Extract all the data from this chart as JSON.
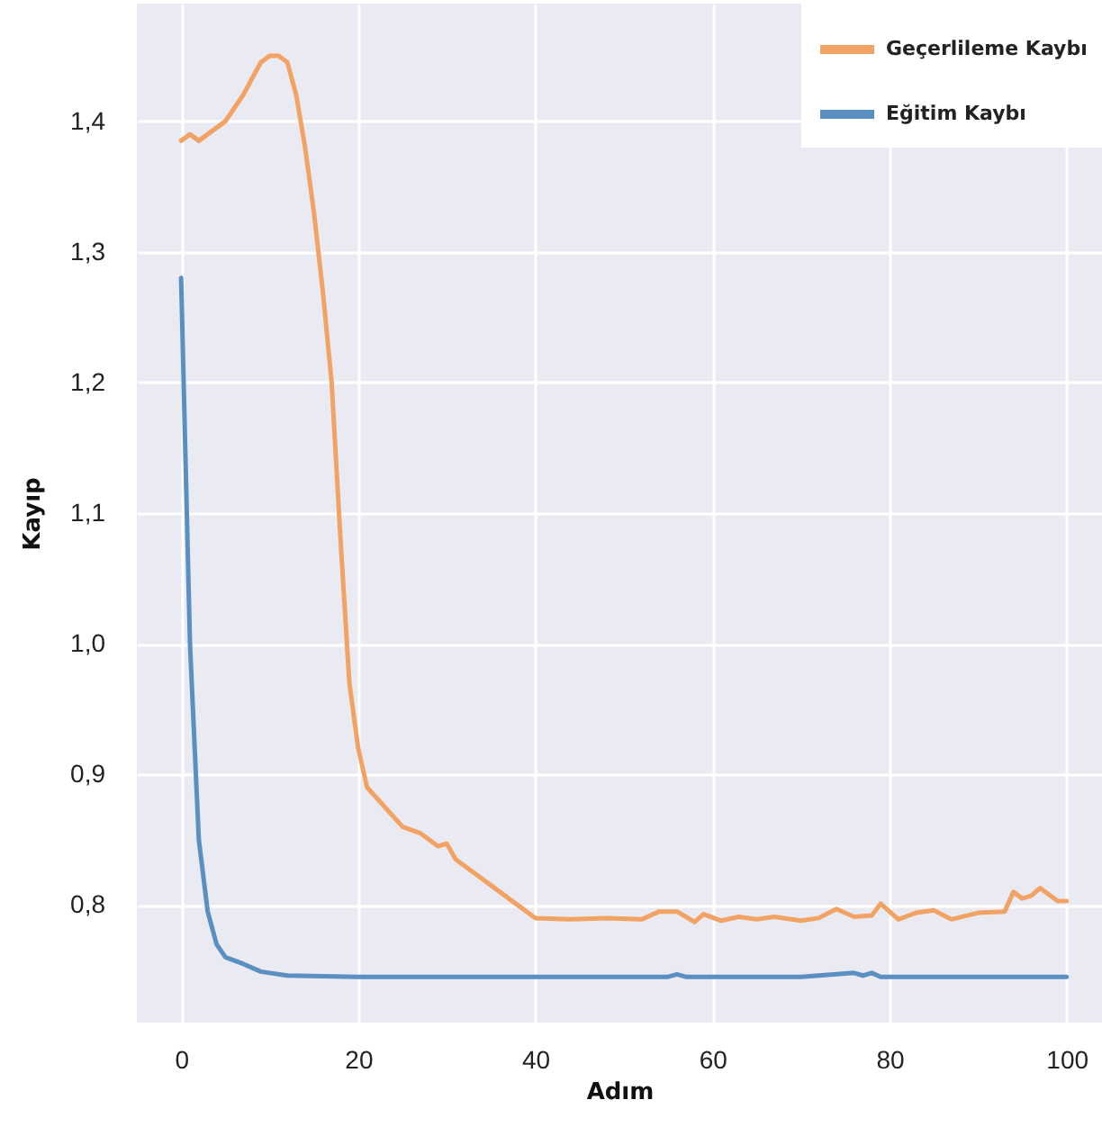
{
  "chart_data": {
    "type": "line",
    "xlabel": "Adım",
    "ylabel": "Kayıp",
    "xlim": [
      -5,
      104
    ],
    "ylim": [
      0.71,
      1.49
    ],
    "xticks": [
      0,
      20,
      40,
      60,
      80,
      100
    ],
    "yticks": [
      {
        "value": 0.8,
        "label": "0,8"
      },
      {
        "value": 0.9,
        "label": "0,9"
      },
      {
        "value": 1.0,
        "label": "1,0"
      },
      {
        "value": 1.1,
        "label": "1,1"
      },
      {
        "value": 1.2,
        "label": "1,2"
      },
      {
        "value": 1.3,
        "label": "1,3"
      },
      {
        "value": 1.4,
        "label": "1,4"
      }
    ],
    "grid": true,
    "legend": "top right",
    "line_style": "solid",
    "marker": "none",
    "series": [
      {
        "name": "Geçerlileme Kaybı",
        "color": "#f2a263",
        "x": [
          0,
          1,
          2,
          3,
          5,
          7,
          9,
          10,
          11,
          12,
          13,
          14,
          15,
          16,
          17,
          18,
          19,
          20,
          21,
          23,
          25,
          27,
          29,
          30,
          31,
          34,
          36,
          38,
          40,
          44,
          48,
          52,
          54,
          56,
          58,
          59,
          61,
          63,
          65,
          67,
          70,
          72,
          74,
          76,
          78,
          79,
          81,
          83,
          85,
          87,
          90,
          93,
          94,
          95,
          96,
          97,
          98,
          99,
          100
        ],
        "values": [
          1.385,
          1.39,
          1.385,
          1.39,
          1.4,
          1.42,
          1.445,
          1.45,
          1.45,
          1.445,
          1.42,
          1.38,
          1.33,
          1.27,
          1.2,
          1.08,
          0.97,
          0.92,
          0.89,
          0.875,
          0.86,
          0.855,
          0.845,
          0.847,
          0.835,
          0.82,
          0.81,
          0.8,
          0.79,
          0.789,
          0.79,
          0.789,
          0.795,
          0.795,
          0.787,
          0.793,
          0.788,
          0.791,
          0.789,
          0.791,
          0.788,
          0.79,
          0.797,
          0.791,
          0.792,
          0.801,
          0.789,
          0.794,
          0.796,
          0.789,
          0.794,
          0.795,
          0.81,
          0.805,
          0.807,
          0.813,
          0.808,
          0.803,
          0.803
        ]
      },
      {
        "name": "Eğitim Kaybı",
        "color": "#5a8fc2",
        "x": [
          0,
          1,
          2,
          3,
          4,
          5,
          7,
          9,
          12,
          20,
          30,
          40,
          50,
          55,
          56,
          57,
          70,
          76,
          77,
          78,
          79,
          90,
          100
        ],
        "values": [
          1.28,
          1.0,
          0.85,
          0.795,
          0.77,
          0.76,
          0.755,
          0.749,
          0.746,
          0.745,
          0.745,
          0.745,
          0.745,
          0.745,
          0.747,
          0.745,
          0.745,
          0.748,
          0.746,
          0.748,
          0.745,
          0.745,
          0.745
        ]
      }
    ]
  }
}
